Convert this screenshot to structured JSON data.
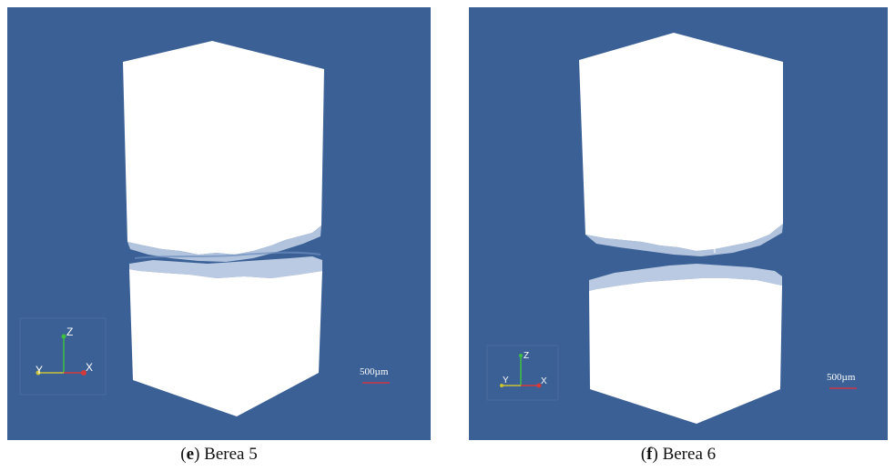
{
  "panels": [
    {
      "id": "e",
      "letter": "e",
      "name": "Berea 5",
      "scale_bar_label": "500µm",
      "axis_labels": {
        "z": "Z",
        "y": "Y",
        "x": "X"
      },
      "scale_bar_color": "#d0344a"
    },
    {
      "id": "f",
      "letter": "f",
      "name": "Berea 6",
      "scale_bar_label": "500µm",
      "axis_labels": {
        "z": "Z",
        "y": "Y",
        "x": "X"
      },
      "scale_bar_color": "#d0344a"
    }
  ],
  "colors": {
    "background": "#3a6096",
    "rock": "#ffffff",
    "axis_z": "#3fbf3f",
    "axis_y": "#c9c234",
    "axis_x": "#d43a3a"
  }
}
